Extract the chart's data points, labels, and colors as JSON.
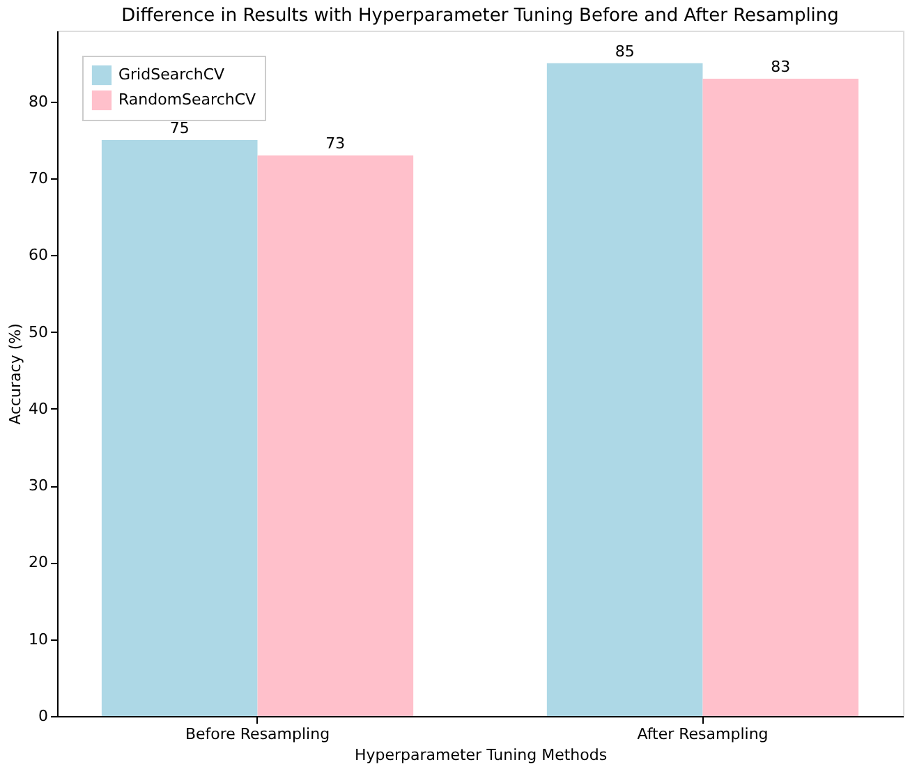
{
  "chart_data": {
    "type": "bar",
    "title": "Difference in Results with Hyperparameter Tuning Before and After Resampling",
    "xlabel": "Hyperparameter Tuning Methods",
    "ylabel": "Accuracy (%)",
    "categories": [
      "Before Resampling",
      "After Resampling"
    ],
    "series": [
      {
        "name": "GridSearchCV",
        "color": "#add8e6",
        "values": [
          75,
          85
        ]
      },
      {
        "name": "RandomSearchCV",
        "color": "#ffc0cb",
        "values": [
          73,
          83
        ]
      }
    ],
    "ylim": [
      0,
      89.25
    ],
    "yticks": [
      0,
      10,
      20,
      30,
      40,
      50,
      60,
      70,
      80
    ],
    "grid": false,
    "legend": "top left",
    "data_labels": true
  }
}
